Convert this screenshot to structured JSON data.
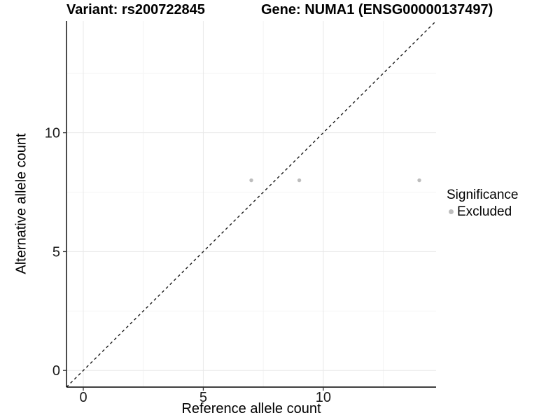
{
  "chart_data": {
    "type": "scatter",
    "title_left": "Variant: rs200722845",
    "title_right": "Gene: NUMA1 (ENSG00000137497)",
    "xlabel": "Reference allele count",
    "ylabel": "Alternative allele count",
    "xlim": [
      -0.7,
      14.7
    ],
    "ylim": [
      -0.7,
      14.7
    ],
    "x_ticks": [
      0,
      5,
      10
    ],
    "y_ticks": [
      0,
      5,
      10
    ],
    "x_minor_ticks": [
      2.5,
      7.5,
      12.5
    ],
    "y_minor_ticks": [
      2.5,
      7.5,
      12.5
    ],
    "grid": true,
    "legend_position": "right",
    "series": [
      {
        "name": "Excluded",
        "color": "#bdbdbd",
        "point_radius": 2.7,
        "points": [
          {
            "x": 7,
            "y": 8
          },
          {
            "x": 9,
            "y": 8
          },
          {
            "x": 14,
            "y": 8
          }
        ]
      }
    ],
    "identity_line": {
      "style": "dashed",
      "x1": -0.7,
      "y1": -0.7,
      "x2": 14.7,
      "y2": 14.7,
      "color": "#1a1a1a"
    },
    "legend": {
      "title": "Significance",
      "items": [
        {
          "label": "Excluded",
          "color": "#bdbdbd"
        }
      ]
    },
    "colors": {
      "grid_major": "#e8e8e8",
      "grid_minor": "#f4f4f4",
      "axis_line": "#000000",
      "tick_mark": "#333333",
      "tick_label": "#1a1a1a"
    }
  }
}
